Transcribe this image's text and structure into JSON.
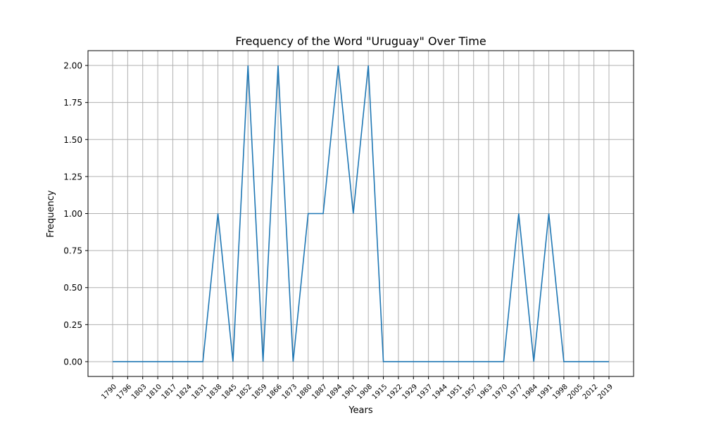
{
  "chart_data": {
    "type": "line",
    "title": "Frequency of the Word \"Uruguay\" Over Time",
    "xlabel": "Years",
    "ylabel": "Frequency",
    "ylim": [
      -0.1,
      2.1
    ],
    "grid": true,
    "line_color": "#1f77b4",
    "grid_color": "#b0b0b0",
    "x": [
      1790,
      1796,
      1803,
      1810,
      1817,
      1824,
      1831,
      1838,
      1845,
      1852,
      1859,
      1866,
      1873,
      1880,
      1887,
      1894,
      1901,
      1908,
      1915,
      1922,
      1929,
      1937,
      1944,
      1951,
      1957,
      1963,
      1970,
      1977,
      1984,
      1991,
      1998,
      2005,
      2012,
      2019
    ],
    "x_tick_labels": [
      "1790",
      "1796",
      "1803",
      "1810",
      "1817",
      "1824",
      "1831",
      "1838",
      "1845",
      "1852",
      "1859",
      "1866",
      "1873",
      "1880",
      "1887",
      "1894",
      "1901",
      "1908",
      "1915",
      "1922",
      "1929",
      "1937",
      "1944",
      "1951",
      "1957",
      "1963",
      "1970",
      "1977",
      "1984",
      "1991",
      "1998",
      "2005",
      "2012",
      "2019"
    ],
    "y_ticks": [
      0.0,
      0.25,
      0.5,
      0.75,
      1.0,
      1.25,
      1.5,
      1.75,
      2.0
    ],
    "y_tick_labels": [
      "0.00",
      "0.25",
      "0.50",
      "0.75",
      "1.00",
      "1.25",
      "1.50",
      "1.75",
      "2.00"
    ],
    "series": [
      {
        "name": "Uruguay",
        "values": [
          0,
          0,
          0,
          0,
          0,
          0,
          0,
          1,
          0,
          2,
          0,
          2,
          0,
          1,
          1,
          2,
          1,
          2,
          0,
          0,
          0,
          0,
          0,
          0,
          0,
          0,
          0,
          1,
          0,
          1,
          0,
          0,
          0,
          0
        ]
      }
    ]
  }
}
